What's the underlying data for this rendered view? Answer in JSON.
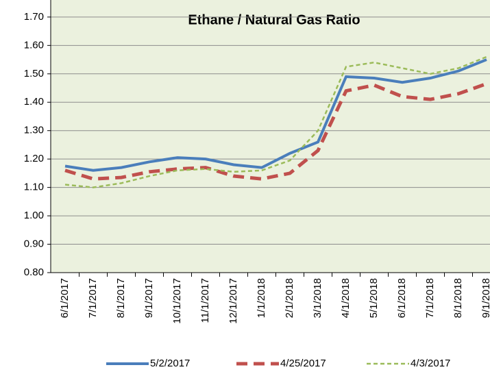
{
  "chart_data": {
    "type": "line",
    "title": "Ethane / Natural Gas Ratio",
    "categories": [
      "6/1/2017",
      "7/1/2017",
      "8/1/2017",
      "9/1/2017",
      "10/1/2017",
      "11/1/2017",
      "12/1/2017",
      "1/1/2018",
      "2/1/2018",
      "3/1/2018",
      "4/1/2018",
      "5/1/2018",
      "6/1/2018",
      "7/1/2018",
      "8/1/2018",
      "9/1/2018"
    ],
    "series": [
      {
        "name": "5/2/2017",
        "color": "#4a7ebb",
        "line_style": "solid",
        "values": [
          1.175,
          1.16,
          1.17,
          1.19,
          1.205,
          1.2,
          1.18,
          1.17,
          1.22,
          1.26,
          1.49,
          1.485,
          1.47,
          1.485,
          1.51,
          1.55
        ]
      },
      {
        "name": "4/25/2017",
        "color": "#c0504d",
        "line_style": "dashed",
        "values": [
          1.16,
          1.13,
          1.135,
          1.155,
          1.165,
          1.17,
          1.14,
          1.13,
          1.15,
          1.23,
          1.44,
          1.46,
          1.42,
          1.41,
          1.43,
          1.465
        ]
      },
      {
        "name": "4/3/2017",
        "color": "#9bbb59",
        "line_style": "dotted",
        "values": [
          1.11,
          1.1,
          1.115,
          1.14,
          1.16,
          1.165,
          1.155,
          1.16,
          1.195,
          1.3,
          1.525,
          1.54,
          1.52,
          1.5,
          1.52,
          1.56
        ]
      }
    ],
    "ylim": [
      0.8,
      1.76
    ],
    "yticks": [
      {
        "value": 0.8,
        "label": "0.80"
      },
      {
        "value": 0.9,
        "label": "0.90"
      },
      {
        "value": 1.0,
        "label": "1.00"
      },
      {
        "value": 1.1,
        "label": "1.10"
      },
      {
        "value": 1.2,
        "label": "1.20"
      },
      {
        "value": 1.3,
        "label": "1.30"
      },
      {
        "value": 1.4,
        "label": "1.40"
      },
      {
        "value": 1.5,
        "label": "1.50"
      },
      {
        "value": 1.6,
        "label": "1.60"
      },
      {
        "value": 1.7,
        "label": "1.70"
      }
    ],
    "grid": true,
    "legend": "bottom"
  }
}
